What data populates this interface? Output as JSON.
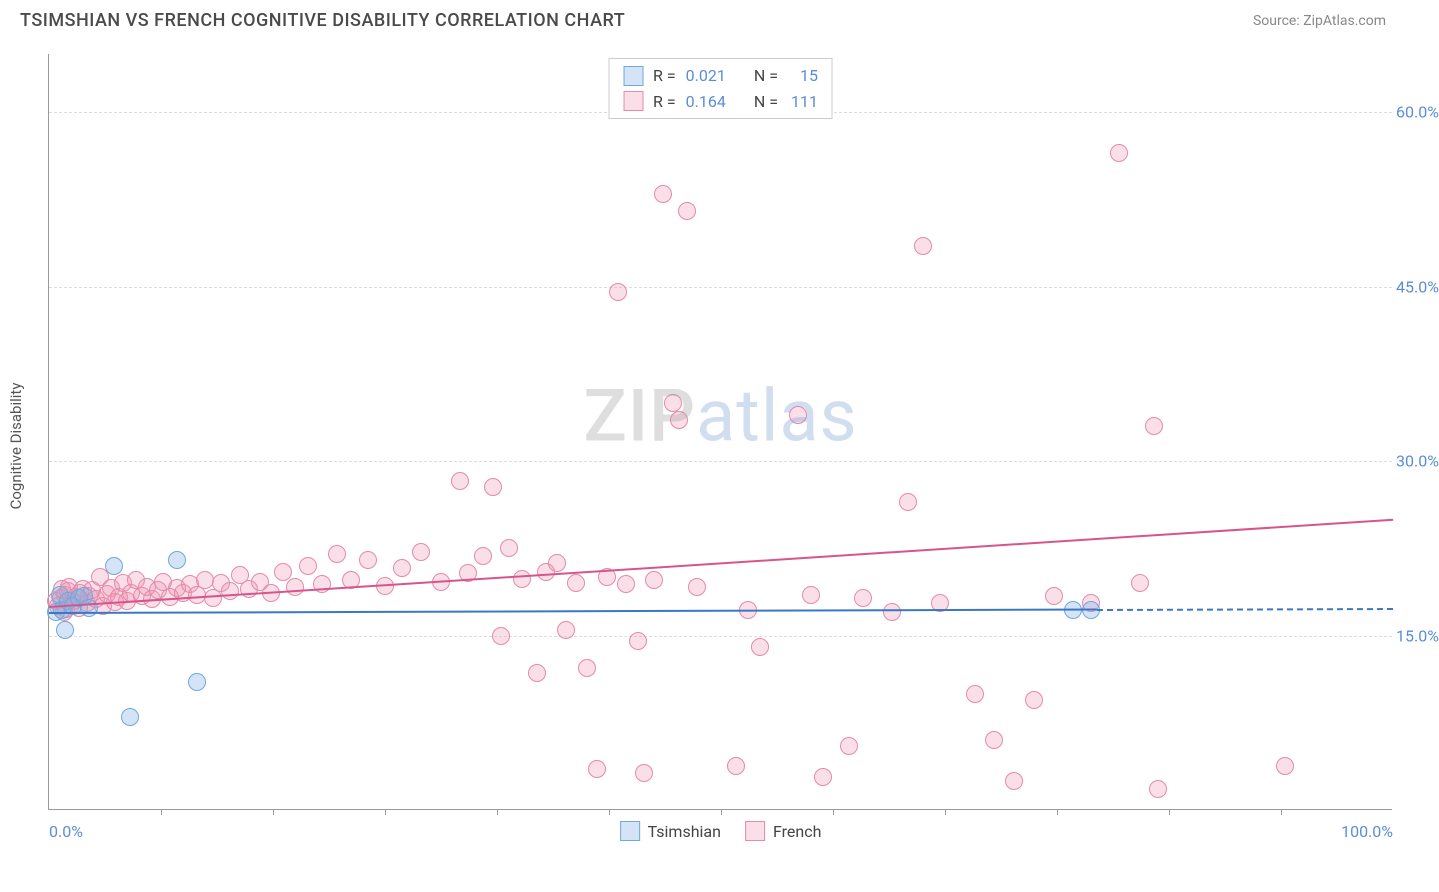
{
  "header": {
    "title": "TSIMSHIAN VS FRENCH COGNITIVE DISABILITY CORRELATION CHART",
    "source_prefix": "Source: ",
    "source_name": "ZipAtlas.com"
  },
  "watermark": {
    "part1": "ZIP",
    "part2": "atlas"
  },
  "axes": {
    "y_title": "Cognitive Disability",
    "x_min": 0,
    "x_max": 100,
    "y_min": 0,
    "y_max": 65,
    "y_ticks": [
      {
        "v": 15,
        "label": "15.0%"
      },
      {
        "v": 30,
        "label": "30.0%"
      },
      {
        "v": 45,
        "label": "45.0%"
      },
      {
        "v": 60,
        "label": "60.0%"
      }
    ],
    "x_ticks_minor": [
      8.33,
      16.67,
      25,
      33.33,
      41.67,
      50,
      58.33,
      66.67,
      75,
      83.33,
      91.67
    ],
    "x_labels": [
      {
        "v": 0,
        "label": "0.0%"
      },
      {
        "v": 100,
        "label": "100.0%"
      }
    ]
  },
  "series": {
    "tsimshian": {
      "label": "Tsimshian",
      "color_fill": "rgba(133,179,230,0.35)",
      "color_stroke": "#6fa8dc",
      "marker_radius": 9,
      "r_value": "0.021",
      "n_value": "15",
      "trend": {
        "x1": 0,
        "y1": 17.0,
        "x2": 78,
        "y2": 17.3,
        "extend_x2": 100,
        "color": "#3b78c4"
      },
      "points": [
        [
          0.5,
          17
        ],
        [
          0.8,
          18.5
        ],
        [
          1,
          17.2
        ],
        [
          1.2,
          15.5
        ],
        [
          1.4,
          18
        ],
        [
          1.8,
          17.5
        ],
        [
          2.2,
          18.2
        ],
        [
          2.6,
          18.4
        ],
        [
          3.0,
          17.4
        ],
        [
          4.8,
          21
        ],
        [
          6.0,
          8
        ],
        [
          9.5,
          21.5
        ],
        [
          11.0,
          11
        ],
        [
          76.2,
          17.2
        ],
        [
          77.5,
          17.2
        ]
      ]
    },
    "french": {
      "label": "French",
      "color_fill": "rgba(240,150,180,0.30)",
      "color_stroke": "#e48aab",
      "marker_radius": 9,
      "r_value": "0.164",
      "n_value": "111",
      "trend": {
        "x1": 0,
        "y1": 17.5,
        "x2": 100,
        "y2": 25,
        "color": "#d6568c"
      },
      "points": [
        [
          0.5,
          18
        ],
        [
          0.7,
          17.5
        ],
        [
          0.9,
          18.2
        ],
        [
          1.0,
          19
        ],
        [
          1.1,
          17
        ],
        [
          1.2,
          18.5
        ],
        [
          1.3,
          17.3
        ],
        [
          1.4,
          18.8
        ],
        [
          1.5,
          19.2
        ],
        [
          1.6,
          17.6
        ],
        [
          1.8,
          18
        ],
        [
          2.0,
          18.3
        ],
        [
          2.2,
          17.4
        ],
        [
          2.3,
          18.7
        ],
        [
          2.5,
          19
        ],
        [
          2.8,
          17.8
        ],
        [
          3.0,
          18.4
        ],
        [
          3.2,
          18.9
        ],
        [
          3.5,
          18.1
        ],
        [
          3.8,
          20
        ],
        [
          4.0,
          17.5
        ],
        [
          4.3,
          18.6
        ],
        [
          4.6,
          19.1
        ],
        [
          4.9,
          17.9
        ],
        [
          5.2,
          18.3
        ],
        [
          5.5,
          19.5
        ],
        [
          5.8,
          18
        ],
        [
          6.1,
          18.7
        ],
        [
          6.5,
          19.8
        ],
        [
          6.9,
          18.4
        ],
        [
          7.3,
          19.2
        ],
        [
          7.7,
          18.1
        ],
        [
          8.1,
          18.9
        ],
        [
          8.5,
          19.6
        ],
        [
          9.0,
          18.3
        ],
        [
          9.5,
          19.1
        ],
        [
          10.0,
          18.7
        ],
        [
          10.5,
          19.4
        ],
        [
          11.0,
          18.5
        ],
        [
          11.6,
          19.8
        ],
        [
          12.2,
          18.2
        ],
        [
          12.8,
          19.5
        ],
        [
          13.5,
          18.8
        ],
        [
          14.2,
          20.2
        ],
        [
          14.9,
          19.0
        ],
        [
          15.7,
          19.6
        ],
        [
          16.5,
          18.7
        ],
        [
          17.4,
          20.5
        ],
        [
          18.3,
          19.2
        ],
        [
          19.3,
          21
        ],
        [
          20.3,
          19.4
        ],
        [
          21.4,
          22
        ],
        [
          22.5,
          19.8
        ],
        [
          23.7,
          21.5
        ],
        [
          25.0,
          19.3
        ],
        [
          26.3,
          20.8
        ],
        [
          27.7,
          22.2
        ],
        [
          29.2,
          19.6
        ],
        [
          30.6,
          28.3
        ],
        [
          31.2,
          20.4
        ],
        [
          32.3,
          21.8
        ],
        [
          33.0,
          27.8
        ],
        [
          33.6,
          15
        ],
        [
          34.2,
          22.5
        ],
        [
          35.2,
          19.9
        ],
        [
          36.3,
          11.8
        ],
        [
          37.0,
          20.5
        ],
        [
          37.8,
          21.2
        ],
        [
          38.5,
          15.5
        ],
        [
          39.2,
          19.5
        ],
        [
          40.0,
          12.2
        ],
        [
          40.8,
          3.5
        ],
        [
          41.5,
          20
        ],
        [
          42.3,
          44.5
        ],
        [
          42.9,
          19.4
        ],
        [
          43.8,
          14.5
        ],
        [
          44.3,
          3.2
        ],
        [
          45.0,
          19.8
        ],
        [
          45.7,
          53
        ],
        [
          46.4,
          35
        ],
        [
          46.9,
          33.5
        ],
        [
          47.5,
          51.5
        ],
        [
          48.2,
          19.2
        ],
        [
          51.1,
          3.8
        ],
        [
          52.0,
          17.2
        ],
        [
          52.9,
          14
        ],
        [
          55.7,
          34
        ],
        [
          56.7,
          18.5
        ],
        [
          57.6,
          2.8
        ],
        [
          59.5,
          5.5
        ],
        [
          60.6,
          18.2
        ],
        [
          62.7,
          17
        ],
        [
          63.9,
          26.5
        ],
        [
          65.0,
          48.5
        ],
        [
          66.3,
          17.8
        ],
        [
          68.9,
          10
        ],
        [
          70.3,
          6
        ],
        [
          71.8,
          2.5
        ],
        [
          73.3,
          9.5
        ],
        [
          74.8,
          18.4
        ],
        [
          77.5,
          17.8
        ],
        [
          79.6,
          56.5
        ],
        [
          81.2,
          19.5
        ],
        [
          82.2,
          33
        ],
        [
          82.5,
          1.8
        ],
        [
          92.0,
          3.8
        ]
      ]
    }
  },
  "stats_legend": {
    "r_label": "R =",
    "n_label": "N ="
  },
  "colors": {
    "axis_label": "#5b8dd6",
    "grid": "#dddddd",
    "title": "#4a4a4a"
  }
}
